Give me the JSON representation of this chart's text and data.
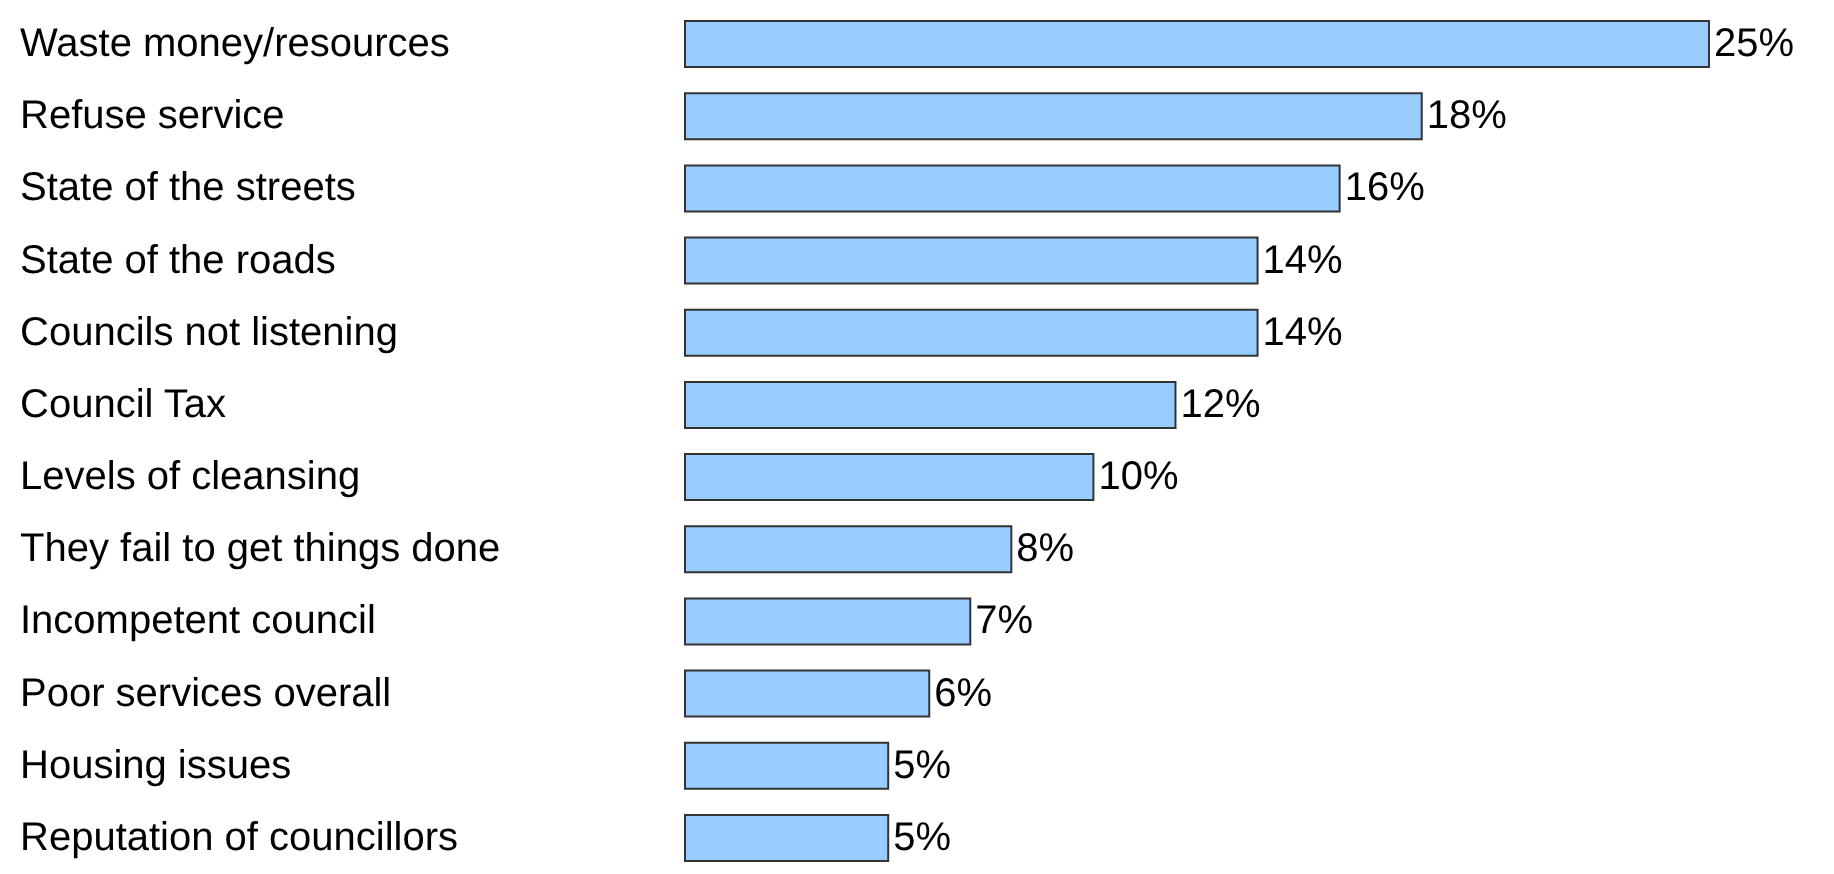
{
  "chart_data": {
    "type": "bar",
    "orientation": "horizontal",
    "categories": [
      "Waste money/resources",
      "Refuse service",
      "State of the streets",
      "State of the roads",
      "Councils not listening",
      "Council Tax",
      "Levels of cleansing",
      "They fail to get things done",
      "Incompetent council",
      "Poor services overall",
      "Housing issues",
      "Reputation of councillors"
    ],
    "values": [
      25,
      18,
      16,
      14,
      14,
      12,
      10,
      8,
      7,
      6,
      5,
      5
    ],
    "value_labels": [
      "25%",
      "18%",
      "16%",
      "14%",
      "14%",
      "12%",
      "10%",
      "8%",
      "7%",
      "6%",
      "5%",
      "5%"
    ],
    "color": "#99ccff"
  }
}
